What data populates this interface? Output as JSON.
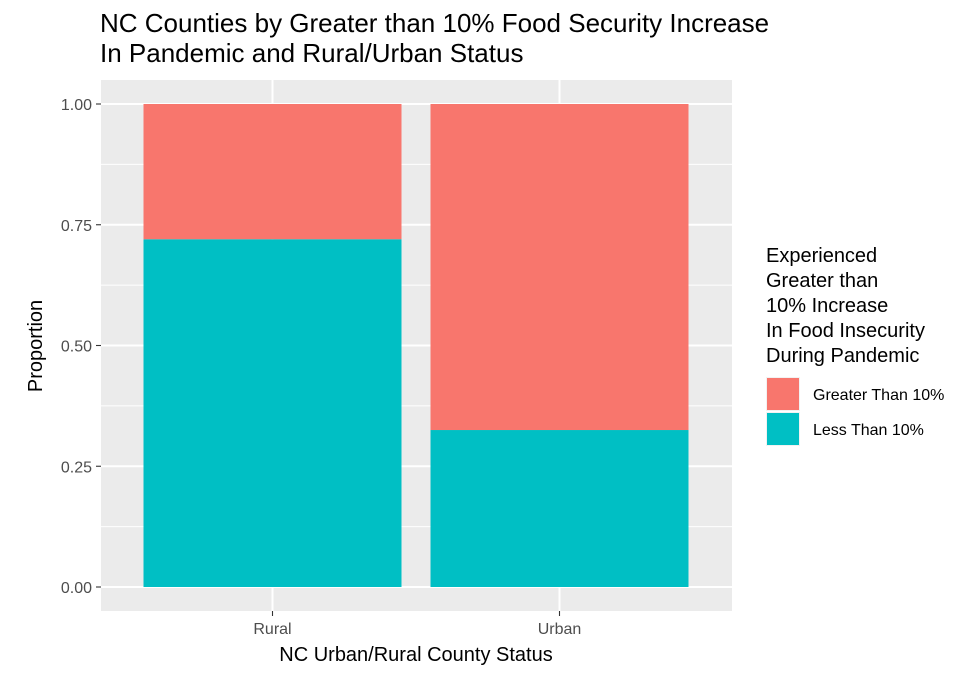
{
  "chart_data": {
    "type": "bar",
    "stacked": true,
    "title_lines": [
      "NC Counties by Greater than 10% Food Security Increase",
      "In Pandemic and Rural/Urban Status"
    ],
    "xlabel": "NC Urban/Rural County Status",
    "ylabel": "Proportion",
    "categories": [
      "Rural",
      "Urban"
    ],
    "ylim": [
      0,
      1
    ],
    "yticks": [
      0.0,
      0.25,
      0.5,
      0.75,
      1.0
    ],
    "ytick_labels": [
      "0.00",
      "0.25",
      "0.50",
      "0.75",
      "1.00"
    ],
    "series": [
      {
        "name": "Less Than 10%",
        "color": "#00BFC4",
        "values": [
          0.72,
          0.325
        ]
      },
      {
        "name": "Greater Than 10%",
        "color": "#F8766D",
        "values": [
          0.28,
          0.675
        ]
      }
    ],
    "legend": {
      "title_lines": [
        "Experienced",
        "Greater than",
        "10% Increase",
        "In Food Insecurity",
        "During Pandemic"
      ],
      "entries": [
        {
          "label": "Greater Than 10%",
          "color": "#F8766D"
        },
        {
          "label": "Less Than 10%",
          "color": "#00BFC4"
        }
      ],
      "position": "right"
    },
    "grid": true,
    "panel_background": "#EBEBEB"
  }
}
